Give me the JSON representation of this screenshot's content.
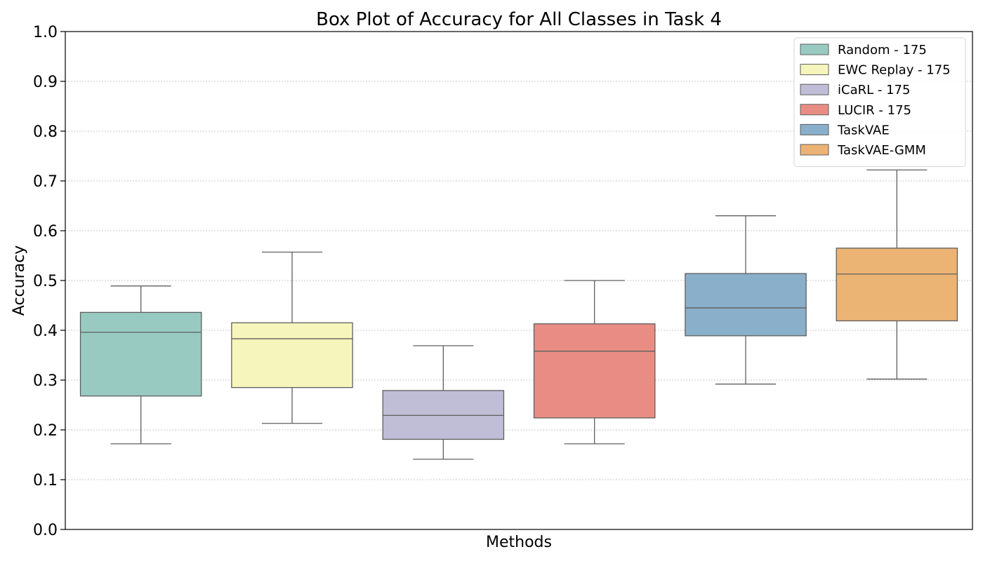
{
  "chart_data": {
    "type": "box",
    "title": "Box Plot of Accuracy for All Classes in Task 4",
    "xlabel": "Methods",
    "ylabel": "Accuracy",
    "ylim": [
      0.0,
      1.0
    ],
    "yticks": [
      0.0,
      0.1,
      0.2,
      0.3,
      0.4,
      0.5,
      0.6,
      0.7,
      0.8,
      0.9,
      1.0
    ],
    "ytick_labels": [
      "0.0",
      "0.1",
      "0.2",
      "0.3",
      "0.4",
      "0.5",
      "0.6",
      "0.7",
      "0.8",
      "0.9",
      "1.0"
    ],
    "grid": "horizontal-dotted",
    "legend_position": "top-right",
    "series": [
      {
        "name": "Random - 175",
        "color": "#98cac1",
        "whisker_low": 0.172,
        "q1": 0.268,
        "median": 0.396,
        "q3": 0.436,
        "whisker_high": 0.489
      },
      {
        "name": "EWC Replay - 175",
        "color": "#f6f6bc",
        "whisker_low": 0.213,
        "q1": 0.285,
        "median": 0.383,
        "q3": 0.415,
        "whisker_high": 0.557
      },
      {
        "name": "iCaRL - 175",
        "color": "#c0bdd6",
        "whisker_low": 0.141,
        "q1": 0.181,
        "median": 0.229,
        "q3": 0.279,
        "whisker_high": 0.369
      },
      {
        "name": "LUCIR - 175",
        "color": "#e98d84",
        "whisker_low": 0.172,
        "q1": 0.224,
        "median": 0.358,
        "q3": 0.413,
        "whisker_high": 0.5
      },
      {
        "name": "TaskVAE",
        "color": "#8aafca",
        "whisker_low": 0.292,
        "q1": 0.389,
        "median": 0.445,
        "q3": 0.514,
        "whisker_high": 0.63
      },
      {
        "name": "TaskVAE-GMM",
        "color": "#ebb374",
        "whisker_low": 0.302,
        "q1": 0.419,
        "median": 0.513,
        "q3": 0.565,
        "whisker_high": 0.722
      }
    ],
    "stroke_color": "#5f5f5f",
    "grid_color": "#c8c8c8"
  }
}
